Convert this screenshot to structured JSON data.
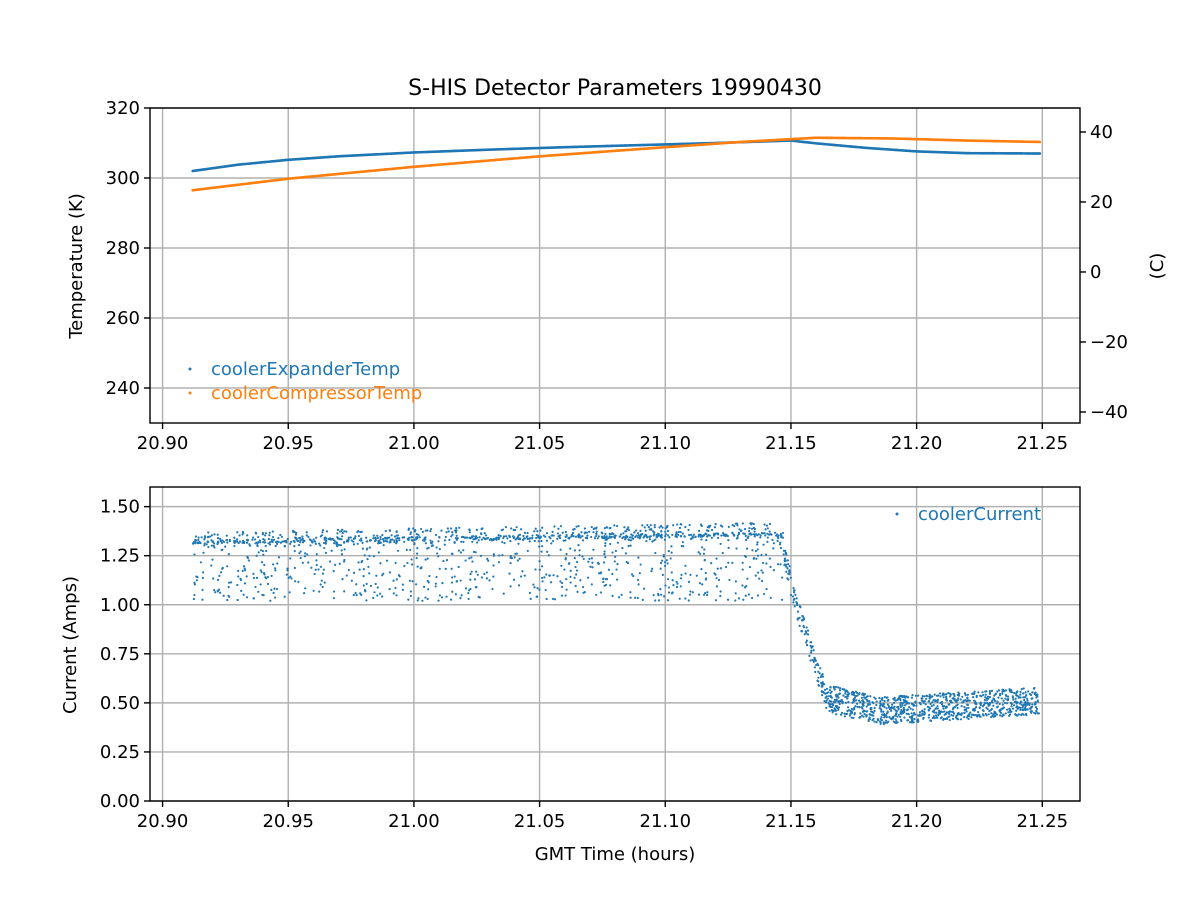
{
  "colors": {
    "expander": "#1f77b4",
    "compressor": "#ff7f0e",
    "current": "#1f77b4"
  },
  "chart_data": [
    {
      "type": "scatter",
      "title": "S-HIS Detector Parameters 19990430",
      "xlabel": "",
      "ylabel": "Temperature (K)",
      "ylabel_right": "(C)",
      "xlim": [
        20.895,
        21.265
      ],
      "ylim": [
        230,
        320
      ],
      "ylim_right": [
        -43.15,
        46.85
      ],
      "x_ticks": [
        20.9,
        20.95,
        21.0,
        21.05,
        21.1,
        21.15,
        21.2,
        21.25
      ],
      "x_tick_labels": [
        "20.90",
        "20.95",
        "21.00",
        "21.05",
        "21.10",
        "21.15",
        "21.20",
        "21.25"
      ],
      "y_ticks": [
        240,
        260,
        280,
        300,
        320
      ],
      "y_tick_labels": [
        "240",
        "260",
        "280",
        "300",
        "320"
      ],
      "y_right_ticks": [
        -40,
        -20,
        0,
        20,
        40
      ],
      "y_right_tick_labels": [
        "−40",
        "−20",
        "0",
        "20",
        "40"
      ],
      "legend_position": "lower-left",
      "series": [
        {
          "name": "coolerExpanderTemp",
          "x": [
            20.912,
            20.93,
            20.95,
            20.97,
            21.0,
            21.03,
            21.06,
            21.09,
            21.12,
            21.15,
            21.16,
            21.18,
            21.2,
            21.22,
            21.249
          ],
          "values": [
            302.0,
            303.8,
            305.2,
            306.2,
            307.3,
            308.1,
            308.8,
            309.4,
            310.0,
            310.7,
            309.9,
            308.6,
            307.6,
            307.1,
            307.0
          ]
        },
        {
          "name": "coolerCompressorTemp",
          "x": [
            20.912,
            20.95,
            21.0,
            21.05,
            21.1,
            21.13,
            21.16,
            21.19,
            21.22,
            21.249
          ],
          "values": [
            296.5,
            299.8,
            303.2,
            306.2,
            308.8,
            310.3,
            311.5,
            311.3,
            310.7,
            310.3
          ]
        }
      ]
    },
    {
      "type": "scatter",
      "title": "",
      "xlabel": "GMT Time (hours)",
      "ylabel": "Current (Amps)",
      "xlim": [
        20.895,
        21.265
      ],
      "ylim": [
        0.0,
        1.6
      ],
      "x_ticks": [
        20.9,
        20.95,
        21.0,
        21.05,
        21.1,
        21.15,
        21.2,
        21.25
      ],
      "x_tick_labels": [
        "20.90",
        "20.95",
        "21.00",
        "21.05",
        "21.10",
        "21.15",
        "21.20",
        "21.25"
      ],
      "y_ticks": [
        0.0,
        0.25,
        0.5,
        0.75,
        1.0,
        1.25,
        1.5
      ],
      "y_tick_labels": [
        "0.00",
        "0.25",
        "0.50",
        "0.75",
        "1.00",
        "1.25",
        "1.50"
      ],
      "legend_position": "upper-right",
      "series": [
        {
          "name": "coolerCurrent",
          "x_range": [
            20.912,
            21.249
          ],
          "description_segments": [
            {
              "x_from": 20.912,
              "x_to": 21.147,
              "low": 1.02,
              "high_start": 1.37,
              "high_end": 1.42,
              "dense_line": 1.32
            },
            {
              "x_from": 21.147,
              "x_to": 21.165,
              "from_value": 1.3,
              "to_value": 0.5
            },
            {
              "x_from": 21.165,
              "x_to": 21.249,
              "center_start": 0.46,
              "center_end": 0.51,
              "spread": 0.07
            }
          ]
        }
      ]
    }
  ]
}
